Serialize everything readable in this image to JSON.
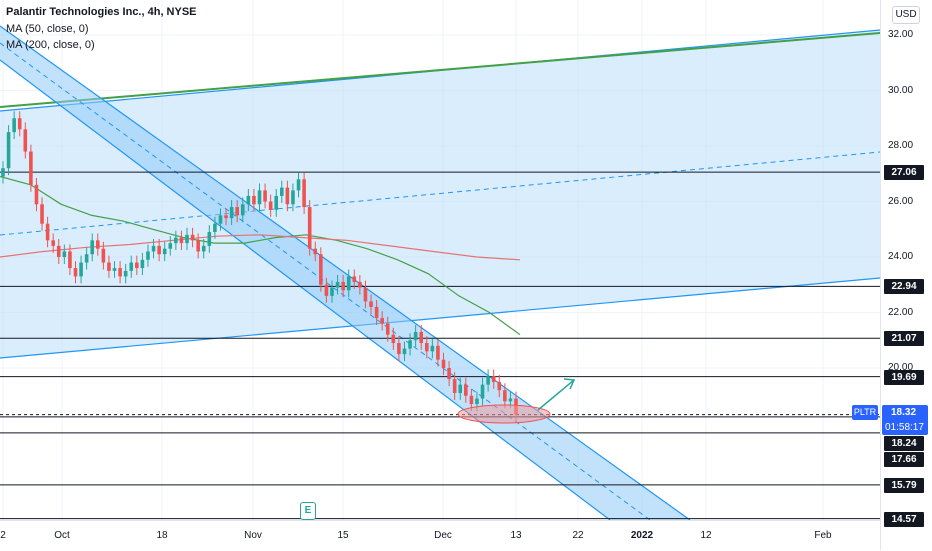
{
  "legend": {
    "title": "Palantir Technologies Inc., 4h, NYSE",
    "ma50": "MA (50, close, 0)",
    "ma200": "MA (200, close, 0)"
  },
  "currency": "USD",
  "price_tag": {
    "symbol": "PLTR",
    "price": "18.32",
    "countdown": "01:58:17"
  },
  "event_marker": "E",
  "colors": {
    "up": "#26a69a",
    "down": "#ef5350",
    "ma50": "#43a047",
    "ma200": "#e57373",
    "channel_fill": "#bbdefb",
    "channel_line": "#2196f3",
    "accent": "#2962ff"
  },
  "chart_data": {
    "type": "candlestick",
    "title": "Palantir Technologies Inc., 4h, NYSE",
    "ylim": [
      14.0,
      33.5
    ],
    "x_ticks": [
      "2",
      "Oct",
      "18",
      "Nov",
      "15",
      "Dec",
      "13",
      "22",
      "2022",
      "12",
      "Feb"
    ],
    "y_ticks": [
      "32.00",
      "30.00",
      "28.00",
      "26.00",
      "24.00",
      "22.00",
      "20.00"
    ],
    "levels": [
      "27.06",
      "22.94",
      "21.07",
      "19.69",
      "18.24",
      "17.66",
      "15.79",
      "14.57"
    ],
    "current_price": 18.32,
    "ma50": [
      26.9,
      26.6,
      25.9,
      25.5,
      25.3,
      25.0,
      24.7,
      24.5,
      24.5,
      24.7,
      24.8,
      24.6,
      24.3,
      23.9,
      23.4,
      22.6,
      22.0,
      21.2
    ],
    "ma200": [
      24.0,
      24.2,
      24.35,
      24.45,
      24.6,
      24.75,
      24.8,
      24.7,
      24.6,
      24.4,
      24.2,
      24.0,
      23.9
    ],
    "close": [
      27.2,
      28.5,
      29.0,
      28.6,
      27.8,
      26.6,
      25.9,
      25.2,
      24.6,
      24.4,
      24.0,
      24.2,
      23.6,
      23.3,
      23.8,
      24.1,
      24.6,
      24.3,
      23.8,
      23.5,
      23.6,
      23.3,
      23.5,
      23.8,
      23.6,
      23.9,
      24.2,
      24.4,
      24.1,
      24.3,
      24.5,
      24.7,
      24.5,
      24.8,
      24.6,
      24.2,
      24.4,
      24.9,
      25.2,
      25.5,
      25.4,
      25.8,
      25.5,
      25.9,
      26.2,
      25.9,
      26.4,
      26.0,
      25.7,
      26.2,
      26.5,
      25.9,
      26.4,
      26.8,
      25.8,
      24.3,
      24.1,
      23.0,
      22.6,
      22.9,
      23.1,
      22.8,
      23.3,
      23.1,
      22.9,
      22.4,
      22.2,
      21.8,
      21.6,
      21.2,
      20.9,
      20.5,
      20.7,
      21.0,
      21.3,
      20.9,
      20.6,
      20.8,
      20.3,
      20.0,
      19.6,
      19.1,
      19.4,
      19.0,
      18.7,
      18.9,
      19.4,
      19.7,
      19.5,
      19.2,
      18.8,
      18.9,
      18.32
    ]
  }
}
